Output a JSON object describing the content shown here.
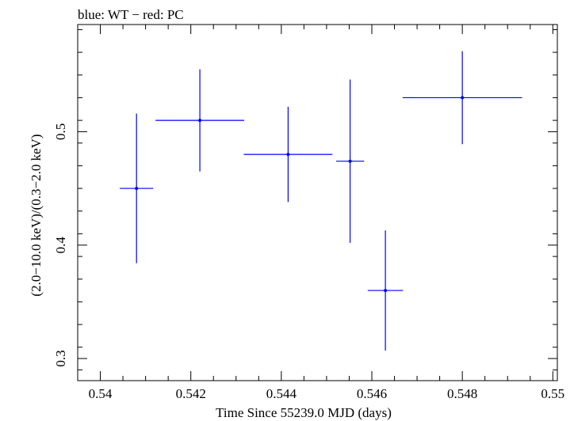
{
  "chart_data": {
    "type": "scatter",
    "title": "blue: WT − red: PC",
    "xlabel": "Time Since 55239.0 MJD (days)",
    "ylabel": "(2.0−10.0 keV)/(0.3−2.0 keV)",
    "xlim": [
      0.5395,
      0.5501
    ],
    "ylim": [
      0.2805,
      0.5945
    ],
    "x_ticks": [
      0.54,
      0.542,
      0.544,
      0.546,
      0.548,
      0.55
    ],
    "x_tick_labels": [
      "0.54",
      "0.542",
      "0.544",
      "0.546",
      "0.548",
      "0.55"
    ],
    "y_ticks": [
      0.3,
      0.4,
      0.5
    ],
    "y_tick_labels": [
      "0.3",
      "0.4",
      "0.5"
    ],
    "grid": false,
    "series": [
      {
        "color": "#0000ff",
        "points": [
          {
            "x": 0.5408,
            "xerr": 0.00037,
            "y": 0.45,
            "yerr_low": 0.066,
            "yerr_high": 0.066
          },
          {
            "x": 0.5422,
            "xerr": 0.00098,
            "y": 0.51,
            "yerr_low": 0.045,
            "yerr_high": 0.045
          },
          {
            "x": 0.54415,
            "xerr": 0.00098,
            "y": 0.48,
            "yerr_low": 0.042,
            "yerr_high": 0.042
          },
          {
            "x": 0.54552,
            "xerr": 0.00031,
            "y": 0.474,
            "yerr_low": 0.072,
            "yerr_high": 0.072
          },
          {
            "x": 0.5463,
            "xerr": 0.00039,
            "y": 0.36,
            "yerr_low": 0.053,
            "yerr_high": 0.053
          },
          {
            "x": 0.548,
            "xerr": 0.00132,
            "y": 0.53,
            "yerr_low": 0.041,
            "yerr_high": 0.041
          }
        ]
      }
    ]
  }
}
